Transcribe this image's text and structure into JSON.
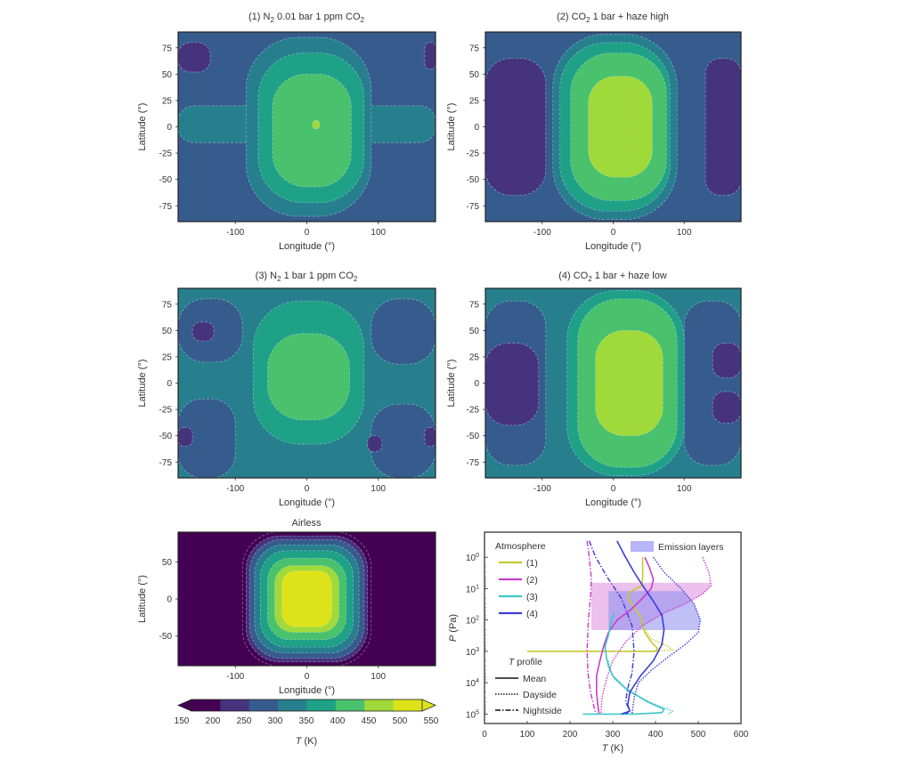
{
  "figure": {
    "colorbar": {
      "label": "T (K)",
      "label_italic": "T",
      "label_unit": " (K)",
      "ticks": [
        150,
        200,
        250,
        300,
        350,
        400,
        450,
        500,
        550
      ],
      "levels": [
        150,
        200,
        250,
        300,
        350,
        400,
        450,
        500,
        550
      ],
      "colors": [
        "#440154",
        "#46337e",
        "#365c8d",
        "#277f8e",
        "#1fa187",
        "#4ac16d",
        "#9fda3a",
        "#dde318"
      ],
      "extend": "both"
    }
  },
  "chart_data": [
    {
      "id": "panel-1",
      "type": "heatmap",
      "subtype": "filled-contour",
      "title": "(1) N2 0.01 bar 1 ppm CO2",
      "title_parts": [
        "(1) N",
        "2",
        " 0.01 bar 1 ppm CO",
        "2",
        ""
      ],
      "xlabel": "Longitude (°)",
      "ylabel": "Latitude (°)",
      "xlim": [
        -180,
        180
      ],
      "ylim": [
        -90,
        90
      ],
      "xticks": [
        -100,
        0,
        100
      ],
      "yticks": [
        75,
        50,
        25,
        0,
        -25,
        -50,
        -75
      ],
      "background_level_K": 275,
      "regions": [
        {
          "level_K": 225,
          "desc": "cold polar nightside patch NW",
          "lon": [
            -180,
            -135
          ],
          "lat": [
            52,
            80
          ]
        },
        {
          "level_K": 225,
          "desc": "cold polar nightside patch NE",
          "lon": [
            165,
            180
          ],
          "lat": [
            55,
            80
          ]
        },
        {
          "level_K": 325,
          "desc": "equatorial band nightside",
          "lon": [
            -180,
            180
          ],
          "lat": [
            -15,
            20
          ]
        },
        {
          "level_K": 325,
          "desc": "dayside envelope",
          "lon": [
            -85,
            90
          ],
          "lat": [
            -85,
            85
          ]
        },
        {
          "level_K": 375,
          "desc": "dayside",
          "lon": [
            -68,
            80
          ],
          "lat": [
            -72,
            70
          ]
        },
        {
          "level_K": 425,
          "desc": "substellar region",
          "lon": [
            -48,
            62
          ],
          "lat": [
            -57,
            50
          ]
        },
        {
          "level_K": 475,
          "desc": "hot spot",
          "lon": [
            8,
            18
          ],
          "lat": [
            -2,
            6
          ]
        }
      ]
    },
    {
      "id": "panel-2",
      "type": "heatmap",
      "subtype": "filled-contour",
      "title": "(2) CO2 1 bar + haze high",
      "title_parts": [
        "(2) CO",
        "2",
        " 1 bar + haze high",
        "",
        ""
      ],
      "xlabel": "Longitude (°)",
      "ylabel": "Latitude (°)",
      "xlim": [
        -180,
        180
      ],
      "ylim": [
        -90,
        90
      ],
      "xticks": [
        -100,
        0,
        100
      ],
      "yticks": [
        75,
        50,
        25,
        0,
        -25,
        -50,
        -75
      ],
      "background_level_K": 275,
      "regions": [
        {
          "level_K": 225,
          "desc": "cold nightside lobe W",
          "lon": [
            -180,
            -95
          ],
          "lat": [
            -65,
            65
          ]
        },
        {
          "level_K": 225,
          "desc": "cold nightside lobe E",
          "lon": [
            130,
            180
          ],
          "lat": [
            -65,
            65
          ]
        },
        {
          "level_K": 325,
          "desc": "dayside envelope",
          "lon": [
            -85,
            90
          ],
          "lat": [
            -88,
            88
          ]
        },
        {
          "level_K": 375,
          "desc": "dayside",
          "lon": [
            -75,
            80
          ],
          "lat": [
            -80,
            80
          ]
        },
        {
          "level_K": 425,
          "desc": "warm dayside",
          "lon": [
            -60,
            75
          ],
          "lat": [
            -70,
            70
          ]
        },
        {
          "level_K": 475,
          "desc": "substellar region",
          "lon": [
            -35,
            55
          ],
          "lat": [
            -48,
            48
          ]
        }
      ]
    },
    {
      "id": "panel-3",
      "type": "heatmap",
      "subtype": "filled-contour",
      "title": "(3) N2 1 bar 1 ppm CO2",
      "title_parts": [
        "(3) N",
        "2",
        " 1 bar 1 ppm CO",
        "2",
        ""
      ],
      "xlabel": "Longitude (°)",
      "ylabel": "Latitude (°)",
      "xlim": [
        -180,
        180
      ],
      "ylim": [
        -90,
        90
      ],
      "xticks": [
        -100,
        0,
        100
      ],
      "yticks": [
        75,
        50,
        25,
        0,
        -25,
        -50,
        -75
      ],
      "background_level_K": 325,
      "regions": [
        {
          "level_K": 275,
          "desc": "nightside NW",
          "lon": [
            -180,
            -90
          ],
          "lat": [
            20,
            80
          ]
        },
        {
          "level_K": 275,
          "desc": "nightside SW",
          "lon": [
            -180,
            -100
          ],
          "lat": [
            -90,
            -15
          ]
        },
        {
          "level_K": 275,
          "desc": "nightside NE",
          "lon": [
            90,
            180
          ],
          "lat": [
            18,
            80
          ]
        },
        {
          "level_K": 275,
          "desc": "nightside SE",
          "lon": [
            90,
            180
          ],
          "lat": [
            -90,
            -20
          ]
        },
        {
          "level_K": 225,
          "desc": "cold spot NW",
          "lon": [
            -160,
            -130
          ],
          "lat": [
            40,
            58
          ]
        },
        {
          "level_K": 225,
          "desc": "cold spot SW",
          "lon": [
            -180,
            -160
          ],
          "lat": [
            -60,
            -42
          ]
        },
        {
          "level_K": 225,
          "desc": "cold spot SE",
          "lon": [
            85,
            105
          ],
          "lat": [
            -65,
            -50
          ]
        },
        {
          "level_K": 225,
          "desc": "cold spot E edge",
          "lon": [
            165,
            180
          ],
          "lat": [
            -60,
            -42
          ]
        },
        {
          "level_K": 375,
          "desc": "dayside",
          "lon": [
            -75,
            80
          ],
          "lat": [
            -58,
            78
          ]
        },
        {
          "level_K": 425,
          "desc": "substellar region",
          "lon": [
            -55,
            60
          ],
          "lat": [
            -35,
            47
          ]
        }
      ]
    },
    {
      "id": "panel-4",
      "type": "heatmap",
      "subtype": "filled-contour",
      "title": "(4) CO2 1 bar + haze low",
      "title_parts": [
        "(4) CO",
        "2",
        " 1 bar + haze low",
        "",
        ""
      ],
      "xlabel": "Longitude (°)",
      "ylabel": "Latitude (°)",
      "xlim": [
        -180,
        180
      ],
      "ylim": [
        -90,
        90
      ],
      "xticks": [
        -100,
        0,
        100
      ],
      "yticks": [
        75,
        50,
        25,
        0,
        -25,
        -50,
        -75
      ],
      "background_level_K": 325,
      "regions": [
        {
          "level_K": 275,
          "desc": "nightside W",
          "lon": [
            -180,
            -95
          ],
          "lat": [
            -78,
            78
          ]
        },
        {
          "level_K": 275,
          "desc": "nightside E",
          "lon": [
            100,
            180
          ],
          "lat": [
            -78,
            78
          ]
        },
        {
          "level_K": 225,
          "desc": "cold lobe W",
          "lon": [
            -180,
            -105
          ],
          "lat": [
            -40,
            38
          ]
        },
        {
          "level_K": 225,
          "desc": "cold lobe E NE",
          "lon": [
            140,
            180
          ],
          "lat": [
            5,
            38
          ]
        },
        {
          "level_K": 225,
          "desc": "cold lobe E SE",
          "lon": [
            140,
            180
          ],
          "lat": [
            -38,
            -8
          ]
        },
        {
          "level_K": 375,
          "desc": "dayside",
          "lon": [
            -65,
            100
          ],
          "lat": [
            -88,
            88
          ]
        },
        {
          "level_K": 425,
          "desc": "warm dayside",
          "lon": [
            -50,
            90
          ],
          "lat": [
            -80,
            80
          ]
        },
        {
          "level_K": 475,
          "desc": "substellar region",
          "lon": [
            -25,
            70
          ],
          "lat": [
            -50,
            50
          ]
        }
      ]
    },
    {
      "id": "panel-airless",
      "type": "heatmap",
      "subtype": "filled-contour",
      "title": "Airless",
      "title_parts": [
        "Airless",
        "",
        "",
        "",
        ""
      ],
      "xlabel": "Longitude (°)",
      "ylabel": "Latitude (°)",
      "xlim": [
        -180,
        180
      ],
      "ylim": [
        -90,
        90
      ],
      "xticks": [
        -100,
        0,
        100
      ],
      "yticks": [
        50,
        0,
        -50
      ],
      "background_level_K": 150,
      "regions": [
        {
          "level_K": 175,
          "desc": "terminator ring",
          "lon": [
            -90,
            90
          ],
          "lat": [
            -90,
            90
          ]
        },
        {
          "level_K": 225,
          "desc": "ring",
          "lon": [
            -85,
            85
          ],
          "lat": [
            -85,
            85
          ]
        },
        {
          "level_K": 275,
          "desc": "ring",
          "lon": [
            -80,
            80
          ],
          "lat": [
            -80,
            80
          ]
        },
        {
          "level_K": 325,
          "desc": "ring",
          "lon": [
            -73,
            73
          ],
          "lat": [
            -73,
            73
          ]
        },
        {
          "level_K": 375,
          "desc": "ring",
          "lon": [
            -65,
            65
          ],
          "lat": [
            -65,
            65
          ]
        },
        {
          "level_K": 425,
          "desc": "ring",
          "lon": [
            -55,
            55
          ],
          "lat": [
            -55,
            55
          ]
        },
        {
          "level_K": 475,
          "desc": "ring",
          "lon": [
            -45,
            45
          ],
          "lat": [
            -45,
            45
          ]
        },
        {
          "level_K": 525,
          "desc": "substellar disk",
          "lon": [
            -35,
            35
          ],
          "lat": [
            -38,
            38
          ]
        }
      ]
    },
    {
      "id": "panel-profiles",
      "type": "line",
      "title": "",
      "xlabel": "T (K)",
      "xlabel_italic": "T",
      "xlabel_unit": " (K)",
      "ylabel": "P (Pa)",
      "ylabel_italic": "P",
      "ylabel_unit": " (Pa)",
      "xlim": [
        0,
        600
      ],
      "ylim_log10": [
        -0.8,
        5.3
      ],
      "yscale": "log",
      "y_inverted": true,
      "xticks": [
        0,
        100,
        200,
        300,
        400,
        500,
        600
      ],
      "yticks_exp": [
        0,
        1,
        2,
        3,
        4,
        5
      ],
      "legend_atmosphere": {
        "title": "Atmosphere",
        "entries": [
          {
            "label": "(1)",
            "color": "#c8c832"
          },
          {
            "label": "(2)",
            "color": "#c83cc8"
          },
          {
            "label": "(3)",
            "color": "#3cc8c8"
          },
          {
            "label": "(4)",
            "color": "#3c3cdc"
          }
        ],
        "placement": "top-left"
      },
      "legend_profile": {
        "title": "T profile",
        "title_italic": "T",
        "title_rest": " profile",
        "entries": [
          {
            "label": "Mean",
            "style": "solid"
          },
          {
            "label": "Dayside",
            "style": "dotted"
          },
          {
            "label": "Nightside",
            "style": "dashdot"
          }
        ],
        "placement": "bottom-left"
      },
      "legend_emission": {
        "label": "Emission layers",
        "color": "#7878f0",
        "placement": "top-right"
      },
      "emission_bands": [
        {
          "atmosphere": "(2)",
          "color": "#dc8cdc",
          "P_range_Pa": [
            6.5,
            210
          ],
          "T_left": 250,
          "T_right_curve": "(2) Dayside"
        },
        {
          "atmosphere": "(4)",
          "color": "#8c8cf0",
          "P_range_Pa": [
            12,
            210
          ],
          "T_left": 290,
          "T_right_curve": "(4) Dayside"
        }
      ],
      "series": [
        {
          "name": "(1) Mean",
          "color": "#c8c832",
          "style": "solid",
          "T": [
            370,
            370,
            368,
            340,
            335,
            345,
            355,
            365,
            370,
            375,
            385,
            395,
            405,
            400,
            100
          ],
          "P": [
            1,
            4,
            8,
            13,
            20,
            30,
            50,
            80,
            150,
            250,
            400,
            600,
            800,
            1000,
            1000
          ]
        },
        {
          "name": "(1) Dayside",
          "color": "#c8c832",
          "style": "dotted",
          "T": [
            375,
            390,
            430,
            440,
            380
          ],
          "P": [
            200,
            400,
            700,
            900,
            1000
          ]
        },
        {
          "name": "(2) Mean",
          "color": "#c83cc8",
          "style": "solid",
          "T": [
            375,
            385,
            395,
            390,
            370,
            340,
            310,
            290,
            280,
            270,
            262,
            262,
            265,
            268
          ],
          "P": [
            1,
            2,
            5,
            10,
            20,
            50,
            100,
            250,
            600,
            2000,
            6000,
            20000,
            50000,
            100000
          ]
        },
        {
          "name": "(2) Dayside",
          "color": "#c83cc8",
          "style": "dotted",
          "T": [
            510,
            525,
            530,
            510,
            470,
            420,
            370,
            330,
            300,
            285,
            275,
            272
          ],
          "P": [
            1,
            3,
            8,
            15,
            30,
            60,
            150,
            500,
            2000,
            8000,
            30000,
            100000
          ]
        },
        {
          "name": "(2) Nightside",
          "color": "#c83cc8",
          "style": "dashdot",
          "T": [
            240,
            245,
            250,
            248,
            243,
            240,
            242,
            248,
            255,
            260
          ],
          "P": [
            0.3,
            1,
            5,
            20,
            100,
            1000,
            5000,
            20000,
            50000,
            100000
          ]
        },
        {
          "name": "(3) Mean",
          "color": "#3cc8c8",
          "style": "solid",
          "T": [
            303,
            298,
            290,
            282,
            285,
            290,
            300,
            330,
            380,
            420,
            415,
            350,
            230
          ],
          "P": [
            60,
            100,
            300,
            700,
            1500,
            3000,
            6000,
            15000,
            40000,
            70000,
            90000,
            100000,
            100000
          ]
        },
        {
          "name": "(3) Dayside",
          "color": "#3cc8c8",
          "style": "dotted",
          "T": [
            290,
            295,
            305,
            340,
            400,
            440,
            430
          ],
          "P": [
            2000,
            4000,
            8000,
            20000,
            50000,
            80000,
            100000
          ]
        },
        {
          "name": "(4) Mean",
          "color": "#3c3cdc",
          "style": "solid",
          "T": [
            310,
            330,
            350,
            370,
            395,
            415,
            420,
            415,
            395,
            365,
            340,
            335,
            340,
            320
          ],
          "P": [
            0.3,
            1,
            3,
            8,
            25,
            70,
            200,
            600,
            2000,
            6000,
            20000,
            50000,
            80000,
            100000
          ]
        },
        {
          "name": "(4) Dayside",
          "color": "#3c3cdc",
          "style": "dotted",
          "T": [
            395,
            420,
            460,
            490,
            505,
            500,
            470,
            430,
            390,
            360,
            350,
            345
          ],
          "P": [
            1,
            3,
            10,
            30,
            100,
            250,
            600,
            1500,
            4000,
            10000,
            30000,
            100000
          ]
        },
        {
          "name": "(4) Nightside",
          "color": "#3c3cdc",
          "style": "dashdot",
          "T": [
            245,
            260,
            290,
            320,
            345,
            350,
            345,
            335,
            330,
            340,
            330
          ],
          "P": [
            0.3,
            1,
            5,
            20,
            150,
            1000,
            5000,
            15000,
            40000,
            80000,
            100000
          ]
        }
      ]
    }
  ]
}
